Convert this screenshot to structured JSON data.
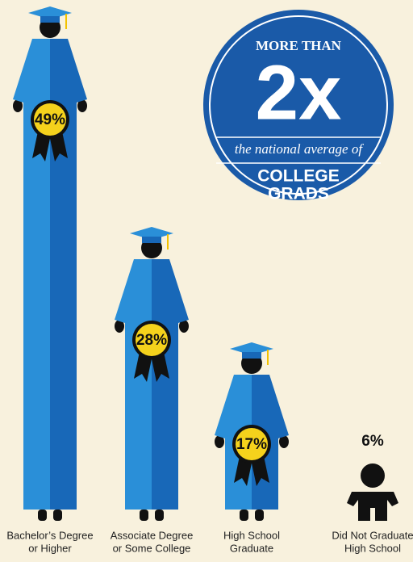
{
  "chart_data": {
    "type": "pictogram",
    "categories": [
      [
        "Bachelor’s Degree",
        "or Higher"
      ],
      [
        "Associate Degree",
        "or Some College"
      ],
      [
        "High School",
        "Graduate"
      ],
      [
        "Did Not Graduate",
        "High School"
      ]
    ],
    "values": [
      49,
      28,
      17,
      6
    ],
    "value_labels": [
      "49%",
      "28%",
      "17%",
      "6%"
    ],
    "colors": [
      "#2a8fd8",
      "#1868b8"
    ],
    "badge": {
      "line1": "MORE THAN",
      "big": "2x",
      "line2": "the national average of",
      "line3": "COLLEGE",
      "line4": "GRADS"
    }
  }
}
